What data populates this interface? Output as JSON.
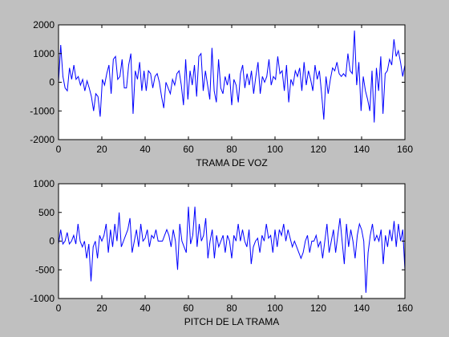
{
  "colors": {
    "figure_bg": "#c0c0c0",
    "axes_bg": "#ffffff",
    "line": "#0000ff",
    "axis": "#000000"
  },
  "chart_data": [
    {
      "type": "line",
      "xlabel": "TRAMA DE VOZ",
      "ylabel": "",
      "xlim": [
        0,
        160
      ],
      "ylim": [
        -2000,
        2000
      ],
      "xticks": [
        0,
        20,
        40,
        60,
        80,
        100,
        120,
        140,
        160
      ],
      "xtick_labels": [
        "0",
        "20",
        "40",
        "60",
        "80",
        "100",
        "120",
        "140",
        "160"
      ],
      "yticks": [
        -2000,
        -1000,
        0,
        1000,
        2000
      ],
      "ytick_labels": [
        "-2000",
        "-1000",
        "0",
        "1000",
        "2000"
      ],
      "grid": false,
      "series": [
        {
          "values": [
            0,
            1300,
            200,
            -200,
            -300,
            500,
            100,
            600,
            100,
            200,
            -100,
            100,
            -300,
            50,
            -200,
            -500,
            -1000,
            -400,
            -500,
            -1200,
            100,
            -100,
            300,
            600,
            -400,
            800,
            900,
            100,
            200,
            800,
            -200,
            -200,
            600,
            1000,
            -1100,
            400,
            100,
            700,
            -300,
            400,
            -300,
            400,
            300,
            -200,
            200,
            300,
            0,
            -500,
            -900,
            0,
            -200,
            -400,
            100,
            -100,
            300,
            400,
            -100,
            -800,
            800,
            -600,
            400,
            -100,
            600,
            -500,
            900,
            1000,
            -300,
            400,
            -100,
            -600,
            1200,
            -300,
            -700,
            800,
            -200,
            -400,
            200,
            -100,
            300,
            -800,
            100,
            -100,
            -700,
            300,
            600,
            -200,
            300,
            -100,
            400,
            -400,
            200,
            700,
            -400,
            200,
            0,
            200,
            800,
            -100,
            200,
            100,
            900,
            300,
            400,
            -300,
            600,
            -700,
            100,
            -100,
            400,
            200,
            500,
            -300,
            700,
            -100,
            400,
            100,
            -300,
            600,
            100,
            400,
            -400,
            -1300,
            200,
            -400,
            100,
            500,
            400,
            700,
            300,
            200,
            300,
            200,
            1000,
            400,
            300,
            1800,
            -100,
            700,
            -1000,
            200,
            -300,
            -600,
            -1000,
            400,
            -1400,
            500,
            -300,
            900,
            -1100,
            300,
            400,
            800,
            600,
            1500,
            900,
            1100,
            700,
            200,
            600
          ]
        }
      ]
    },
    {
      "type": "line",
      "xlabel": "PITCH DE LA TRAMA",
      "ylabel": "",
      "xlim": [
        0,
        160
      ],
      "ylim": [
        -1000,
        1000
      ],
      "xticks": [
        0,
        20,
        40,
        60,
        80,
        100,
        120,
        140,
        160
      ],
      "xtick_labels": [
        "0",
        "20",
        "40",
        "60",
        "80",
        "100",
        "120",
        "140",
        "160"
      ],
      "yticks": [
        -1000,
        -500,
        0,
        500,
        1000
      ],
      "ytick_labels": [
        "-1000",
        "-500",
        "0",
        "500",
        "1000"
      ],
      "grid": false,
      "series": [
        {
          "values": [
            -50,
            200,
            -50,
            0,
            150,
            -50,
            0,
            100,
            -50,
            300,
            0,
            -100,
            0,
            -300,
            -50,
            -700,
            -100,
            0,
            -300,
            100,
            0,
            100,
            300,
            -200,
            200,
            -100,
            300,
            0,
            500,
            -100,
            0,
            100,
            200,
            400,
            -200,
            0,
            200,
            -100,
            300,
            0,
            50,
            200,
            -100,
            100,
            50,
            200,
            0,
            0,
            0,
            100,
            200,
            100,
            -100,
            200,
            0,
            -500,
            300,
            0,
            -100,
            -200,
            600,
            -50,
            100,
            600,
            -100,
            300,
            0,
            100,
            400,
            -300,
            0,
            200,
            -300,
            100,
            -100,
            0,
            100,
            -200,
            100,
            0,
            -300,
            100,
            0,
            300,
            0,
            200,
            0,
            -100,
            200,
            -400,
            -100,
            0,
            50,
            -200,
            100,
            0,
            300,
            50,
            100,
            -200,
            200,
            -100,
            200,
            100,
            300,
            0,
            200,
            50,
            -100,
            0,
            -100,
            -200,
            -300,
            -200,
            0,
            100,
            -200,
            0,
            0,
            100,
            -100,
            0,
            -300,
            0,
            300,
            -200,
            0,
            200,
            -200,
            100,
            400,
            0,
            -400,
            300,
            -100,
            200,
            0,
            -300,
            100,
            300,
            200,
            0,
            -900,
            -200,
            100,
            300,
            0,
            100,
            0,
            200,
            -400,
            100,
            -100,
            200,
            0,
            350,
            -100,
            300,
            0,
            200,
            -500
          ]
        }
      ]
    }
  ]
}
